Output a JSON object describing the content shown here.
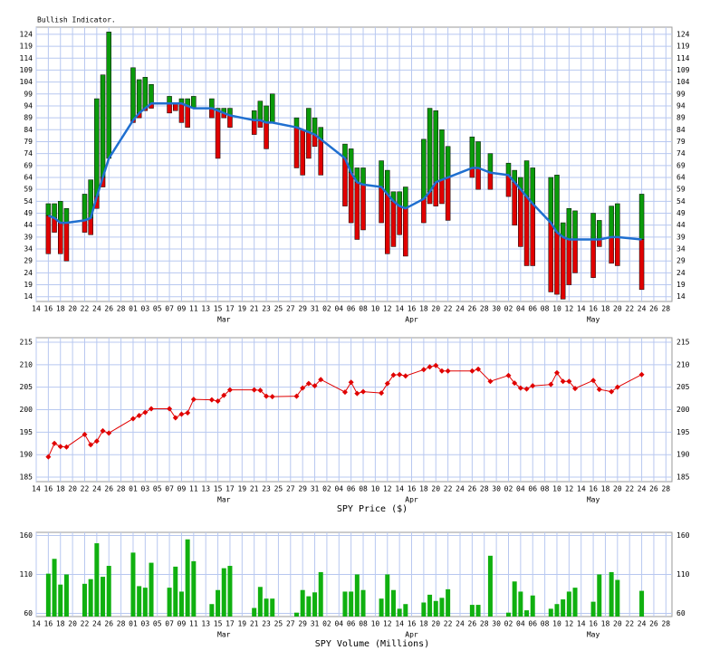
{
  "chart_data": [
    {
      "type": "range",
      "title": "Bullish Indicator.",
      "x": [
        2,
        3,
        4,
        5,
        8,
        9,
        10,
        11,
        12,
        16,
        17,
        18,
        19,
        22,
        23,
        24,
        25,
        26,
        29,
        30,
        31,
        32,
        36,
        37,
        38,
        39,
        43,
        44,
        45,
        46,
        47,
        51,
        52,
        53,
        54,
        57,
        58,
        59,
        60,
        61,
        64,
        65,
        66,
        67,
        68,
        72,
        73,
        75,
        78,
        79,
        80,
        81,
        82,
        85,
        86,
        87,
        88,
        89,
        92,
        93,
        95,
        96,
        100
      ],
      "high": [
        53,
        53,
        54,
        51,
        57,
        63,
        97,
        107,
        125,
        110,
        105,
        106,
        103,
        98,
        95,
        97,
        97,
        98,
        97,
        93,
        93,
        93,
        92,
        96,
        94,
        99,
        89,
        84,
        93,
        89,
        85,
        78,
        76,
        68,
        68,
        71,
        67,
        58,
        58,
        60,
        80,
        93,
        92,
        84,
        77,
        81,
        79,
        74,
        70,
        67,
        64,
        71,
        68,
        64,
        65,
        45,
        51,
        50,
        49,
        46,
        52,
        53,
        57
      ],
      "average": [
        48,
        47,
        45,
        45,
        46,
        47,
        56,
        64,
        72,
        88,
        91,
        93,
        95,
        95,
        95,
        95,
        94,
        93,
        93,
        92,
        91,
        90,
        88,
        88,
        87,
        87,
        85,
        84,
        83,
        82,
        80,
        72,
        66,
        62,
        61,
        60,
        57,
        54,
        52,
        51,
        55,
        58,
        62,
        63,
        64,
        68,
        68,
        66,
        65,
        62,
        59,
        56,
        53,
        45,
        41,
        39,
        38,
        38,
        38,
        38,
        39,
        39,
        38
      ],
      "low": [
        32,
        41,
        32,
        29,
        41,
        40,
        51,
        60,
        72,
        87,
        89,
        92,
        93,
        91,
        92,
        87,
        85,
        93,
        89,
        72,
        89,
        85,
        82,
        85,
        76,
        87,
        68,
        65,
        72,
        77,
        65,
        52,
        45,
        38,
        42,
        45,
        32,
        35,
        40,
        31,
        45,
        53,
        52,
        53,
        46,
        64,
        59,
        59,
        56,
        44,
        35,
        27,
        27,
        16,
        15,
        13,
        19,
        24,
        22,
        35,
        28,
        27,
        17
      ],
      "up_color": "#0a9a0a",
      "down_color": "#e00000",
      "line_color": "#1f6fd0",
      "xlim": [
        0,
        105
      ],
      "ylim": [
        12,
        127
      ],
      "yticks": [
        14,
        19,
        24,
        29,
        34,
        39,
        44,
        49,
        54,
        59,
        64,
        69,
        74,
        79,
        84,
        89,
        94,
        99,
        104,
        109,
        114,
        119,
        124
      ],
      "xticks": [
        {
          "value": 0,
          "label": "14"
        },
        {
          "value": 2,
          "label": "16"
        },
        {
          "value": 4,
          "label": "18"
        },
        {
          "value": 6,
          "label": "20"
        },
        {
          "value": 8,
          "label": "22"
        },
        {
          "value": 10,
          "label": "24"
        },
        {
          "value": 12,
          "label": "26"
        },
        {
          "value": 14,
          "label": "28"
        },
        {
          "value": 16,
          "label": "01"
        },
        {
          "value": 18,
          "label": "03"
        },
        {
          "value": 20,
          "label": "05"
        },
        {
          "value": 22,
          "label": "07"
        },
        {
          "value": 24,
          "label": "09"
        },
        {
          "value": 26,
          "label": "11"
        },
        {
          "value": 28,
          "label": "13"
        },
        {
          "value": 30,
          "label": "15"
        },
        {
          "value": 32,
          "label": "17"
        },
        {
          "value": 34,
          "label": "19"
        },
        {
          "value": 36,
          "label": "21"
        },
        {
          "value": 38,
          "label": "23"
        },
        {
          "value": 40,
          "label": "25"
        },
        {
          "value": 42,
          "label": "27"
        },
        {
          "value": 44,
          "label": "29"
        },
        {
          "value": 46,
          "label": "31"
        },
        {
          "value": 48,
          "label": "02"
        },
        {
          "value": 50,
          "label": "04"
        },
        {
          "value": 52,
          "label": "06"
        },
        {
          "value": 54,
          "label": "08"
        },
        {
          "value": 56,
          "label": "10"
        },
        {
          "value": 58,
          "label": "12"
        },
        {
          "value": 60,
          "label": "14"
        },
        {
          "value": 62,
          "label": "16"
        },
        {
          "value": 64,
          "label": "18"
        },
        {
          "value": 66,
          "label": "20"
        },
        {
          "value": 68,
          "label": "22"
        },
        {
          "value": 70,
          "label": "24"
        },
        {
          "value": 72,
          "label": "26"
        },
        {
          "value": 74,
          "label": "28"
        },
        {
          "value": 76,
          "label": "30"
        },
        {
          "value": 78,
          "label": "02"
        },
        {
          "value": 80,
          "label": "04"
        },
        {
          "value": 82,
          "label": "06"
        },
        {
          "value": 84,
          "label": "08"
        },
        {
          "value": 86,
          "label": "10"
        },
        {
          "value": 88,
          "label": "12"
        },
        {
          "value": 90,
          "label": "14"
        },
        {
          "value": 92,
          "label": "16"
        },
        {
          "value": 94,
          "label": "18"
        },
        {
          "value": 96,
          "label": "20"
        },
        {
          "value": 98,
          "label": "22"
        },
        {
          "value": 100,
          "label": "24"
        },
        {
          "value": 102,
          "label": "26"
        },
        {
          "value": 104,
          "label": "28"
        }
      ],
      "xmonths": [
        {
          "value": 31,
          "label": "Mar"
        },
        {
          "value": 62,
          "label": "Apr"
        },
        {
          "value": 92,
          "label": "May"
        }
      ],
      "grid": true
    },
    {
      "type": "line",
      "xlabel": "SPY Price ($)",
      "x": [
        2,
        3,
        4,
        5,
        8,
        9,
        10,
        11,
        12,
        16,
        17,
        18,
        19,
        22,
        23,
        24,
        25,
        26,
        29,
        30,
        31,
        32,
        36,
        37,
        38,
        39,
        43,
        44,
        45,
        46,
        47,
        51,
        52,
        53,
        54,
        57,
        58,
        59,
        60,
        61,
        64,
        65,
        66,
        67,
        68,
        72,
        73,
        75,
        78,
        79,
        80,
        81,
        82,
        85,
        86,
        87,
        88,
        89,
        92,
        93,
        95,
        96,
        100
      ],
      "values": [
        189.5,
        192.5,
        191.8,
        191.7,
        194.5,
        192.2,
        193,
        195.3,
        194.8,
        198,
        198.7,
        199.4,
        200.2,
        200.2,
        198.2,
        199,
        199.3,
        202.3,
        202.2,
        201.9,
        203.2,
        204.4,
        204.4,
        204.3,
        203,
        202.9,
        203,
        204.8,
        205.8,
        205.3,
        206.7,
        203.9,
        206.1,
        203.6,
        204,
        203.7,
        205.8,
        207.7,
        207.8,
        207.5,
        208.9,
        209.5,
        209.8,
        208.6,
        208.6,
        208.6,
        209,
        206.3,
        207.6,
        205.9,
        204.8,
        204.6,
        205.3,
        205.6,
        208.2,
        206.3,
        206.3,
        204.7,
        206.5,
        204.5,
        204,
        205,
        207.8
      ],
      "color": "#e00000",
      "xlim": [
        0,
        105
      ],
      "ylim": [
        184,
        216
      ],
      "yticks": [
        185,
        190,
        195,
        200,
        205,
        210,
        215
      ],
      "xticks": [
        {
          "value": 0,
          "label": "14"
        },
        {
          "value": 2,
          "label": "16"
        },
        {
          "value": 4,
          "label": "18"
        },
        {
          "value": 6,
          "label": "20"
        },
        {
          "value": 8,
          "label": "22"
        },
        {
          "value": 10,
          "label": "24"
        },
        {
          "value": 12,
          "label": "26"
        },
        {
          "value": 14,
          "label": "28"
        },
        {
          "value": 16,
          "label": "01"
        },
        {
          "value": 18,
          "label": "03"
        },
        {
          "value": 20,
          "label": "05"
        },
        {
          "value": 22,
          "label": "07"
        },
        {
          "value": 24,
          "label": "09"
        },
        {
          "value": 26,
          "label": "11"
        },
        {
          "value": 28,
          "label": "13"
        },
        {
          "value": 30,
          "label": "15"
        },
        {
          "value": 32,
          "label": "17"
        },
        {
          "value": 34,
          "label": "19"
        },
        {
          "value": 36,
          "label": "21"
        },
        {
          "value": 38,
          "label": "23"
        },
        {
          "value": 40,
          "label": "25"
        },
        {
          "value": 42,
          "label": "27"
        },
        {
          "value": 44,
          "label": "29"
        },
        {
          "value": 46,
          "label": "31"
        },
        {
          "value": 48,
          "label": "02"
        },
        {
          "value": 50,
          "label": "04"
        },
        {
          "value": 52,
          "label": "06"
        },
        {
          "value": 54,
          "label": "08"
        },
        {
          "value": 56,
          "label": "10"
        },
        {
          "value": 58,
          "label": "12"
        },
        {
          "value": 60,
          "label": "14"
        },
        {
          "value": 62,
          "label": "16"
        },
        {
          "value": 64,
          "label": "18"
        },
        {
          "value": 66,
          "label": "20"
        },
        {
          "value": 68,
          "label": "22"
        },
        {
          "value": 70,
          "label": "24"
        },
        {
          "value": 72,
          "label": "26"
        },
        {
          "value": 74,
          "label": "28"
        },
        {
          "value": 76,
          "label": "30"
        },
        {
          "value": 78,
          "label": "02"
        },
        {
          "value": 80,
          "label": "04"
        },
        {
          "value": 82,
          "label": "06"
        },
        {
          "value": 84,
          "label": "08"
        },
        {
          "value": 86,
          "label": "10"
        },
        {
          "value": 88,
          "label": "12"
        },
        {
          "value": 90,
          "label": "14"
        },
        {
          "value": 92,
          "label": "16"
        },
        {
          "value": 94,
          "label": "18"
        },
        {
          "value": 96,
          "label": "20"
        },
        {
          "value": 98,
          "label": "22"
        },
        {
          "value": 100,
          "label": "24"
        },
        {
          "value": 102,
          "label": "26"
        },
        {
          "value": 104,
          "label": "28"
        }
      ],
      "xmonths": [
        {
          "value": 31,
          "label": "Mar"
        },
        {
          "value": 62,
          "label": "Apr"
        },
        {
          "value": 92,
          "label": "May"
        }
      ],
      "grid": true
    },
    {
      "type": "bar",
      "xlabel": "SPY Volume (Millions)",
      "x": [
        2,
        3,
        4,
        5,
        8,
        9,
        10,
        11,
        12,
        16,
        17,
        18,
        19,
        22,
        23,
        24,
        25,
        26,
        29,
        30,
        31,
        32,
        36,
        37,
        38,
        39,
        43,
        44,
        45,
        46,
        47,
        51,
        52,
        53,
        54,
        57,
        58,
        59,
        60,
        61,
        64,
        65,
        66,
        67,
        68,
        72,
        73,
        75,
        78,
        79,
        80,
        81,
        82,
        85,
        86,
        87,
        88,
        89,
        92,
        93,
        95,
        96,
        100
      ],
      "values": [
        111,
        130,
        97,
        110,
        98,
        104,
        150,
        107,
        121,
        138,
        95,
        93,
        125,
        93,
        120,
        88,
        155,
        127,
        72,
        90,
        118,
        121,
        67,
        94,
        79,
        79,
        61,
        90,
        82,
        87,
        113,
        88,
        88,
        110,
        90,
        79,
        110,
        90,
        66,
        72,
        74,
        84,
        76,
        80,
        91,
        71,
        71,
        134,
        61,
        101,
        88,
        64,
        83,
        66,
        72,
        78,
        88,
        93,
        75,
        110,
        113,
        103,
        89
      ],
      "color": "#10b010",
      "xlim": [
        0,
        105
      ],
      "ylim": [
        56,
        164
      ],
      "yticks": [
        60,
        110,
        160
      ],
      "xticks": [
        {
          "value": 0,
          "label": "14"
        },
        {
          "value": 2,
          "label": "16"
        },
        {
          "value": 4,
          "label": "18"
        },
        {
          "value": 6,
          "label": "20"
        },
        {
          "value": 8,
          "label": "22"
        },
        {
          "value": 10,
          "label": "24"
        },
        {
          "value": 12,
          "label": "26"
        },
        {
          "value": 14,
          "label": "28"
        },
        {
          "value": 16,
          "label": "01"
        },
        {
          "value": 18,
          "label": "03"
        },
        {
          "value": 20,
          "label": "05"
        },
        {
          "value": 22,
          "label": "07"
        },
        {
          "value": 24,
          "label": "09"
        },
        {
          "value": 26,
          "label": "11"
        },
        {
          "value": 28,
          "label": "13"
        },
        {
          "value": 30,
          "label": "15"
        },
        {
          "value": 32,
          "label": "17"
        },
        {
          "value": 34,
          "label": "19"
        },
        {
          "value": 36,
          "label": "21"
        },
        {
          "value": 38,
          "label": "23"
        },
        {
          "value": 40,
          "label": "25"
        },
        {
          "value": 42,
          "label": "27"
        },
        {
          "value": 44,
          "label": "29"
        },
        {
          "value": 46,
          "label": "31"
        },
        {
          "value": 48,
          "label": "02"
        },
        {
          "value": 50,
          "label": "04"
        },
        {
          "value": 52,
          "label": "06"
        },
        {
          "value": 54,
          "label": "08"
        },
        {
          "value": 56,
          "label": "10"
        },
        {
          "value": 58,
          "label": "12"
        },
        {
          "value": 60,
          "label": "14"
        },
        {
          "value": 62,
          "label": "16"
        },
        {
          "value": 64,
          "label": "18"
        },
        {
          "value": 66,
          "label": "20"
        },
        {
          "value": 68,
          "label": "22"
        },
        {
          "value": 70,
          "label": "24"
        },
        {
          "value": 72,
          "label": "26"
        },
        {
          "value": 74,
          "label": "28"
        },
        {
          "value": 76,
          "label": "30"
        },
        {
          "value": 78,
          "label": "02"
        },
        {
          "value": 80,
          "label": "04"
        },
        {
          "value": 82,
          "label": "06"
        },
        {
          "value": 84,
          "label": "08"
        },
        {
          "value": 86,
          "label": "10"
        },
        {
          "value": 88,
          "label": "12"
        },
        {
          "value": 90,
          "label": "14"
        },
        {
          "value": 92,
          "label": "16"
        },
        {
          "value": 94,
          "label": "18"
        },
        {
          "value": 96,
          "label": "20"
        },
        {
          "value": 98,
          "label": "22"
        },
        {
          "value": 100,
          "label": "24"
        },
        {
          "value": 102,
          "label": "26"
        },
        {
          "value": 104,
          "label": "28"
        }
      ],
      "xmonths": [
        {
          "value": 31,
          "label": "Mar"
        },
        {
          "value": 62,
          "label": "Apr"
        },
        {
          "value": 92,
          "label": "May"
        }
      ],
      "grid": true
    }
  ]
}
